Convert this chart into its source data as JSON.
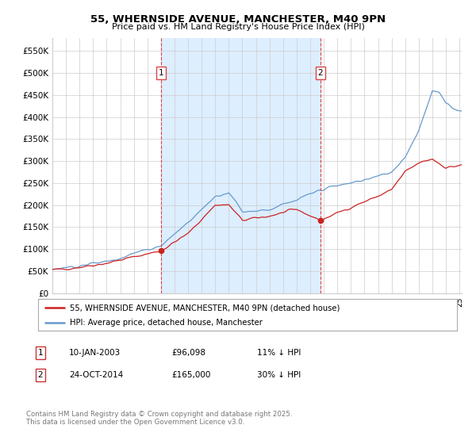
{
  "title_line1": "55, WHERNSIDE AVENUE, MANCHESTER, M40 9PN",
  "title_line2": "Price paid vs. HM Land Registry's House Price Index (HPI)",
  "background_color": "#ffffff",
  "grid_color": "#cccccc",
  "hpi_color": "#6699cc",
  "hpi_fill_color": "#ddeeff",
  "price_color": "#cc2222",
  "vline_color": "#dd4444",
  "legend_entry1": "55, WHERNSIDE AVENUE, MANCHESTER, M40 9PN (detached house)",
  "legend_entry2": "HPI: Average price, detached house, Manchester",
  "table_row1": [
    "1",
    "10-JAN-2003",
    "£96,098",
    "11% ↓ HPI"
  ],
  "table_row2": [
    "2",
    "24-OCT-2014",
    "£165,000",
    "30% ↓ HPI"
  ],
  "footer": "Contains HM Land Registry data © Crown copyright and database right 2025.\nThis data is licensed under the Open Government Licence v3.0.",
  "ylim": [
    0,
    580000
  ],
  "yticks": [
    0,
    50000,
    100000,
    150000,
    200000,
    250000,
    300000,
    350000,
    400000,
    450000,
    500000,
    550000
  ],
  "sale1_month": 96,
  "sale2_month": 237,
  "sale1_price": 96098,
  "sale2_price": 165000
}
